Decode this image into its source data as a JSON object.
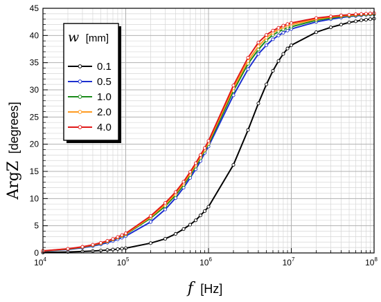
{
  "chart_data": {
    "type": "line",
    "xscale": "log",
    "xlim": [
      10000,
      100000000
    ],
    "ylim": [
      0,
      45
    ],
    "xlabel": {
      "symbol": "f",
      "unit": "[Hz]"
    },
    "ylabel": {
      "symbol": "ArgZ",
      "unit": "[degrees]"
    },
    "x_ticks": [
      {
        "base": "10",
        "exp": "4"
      },
      {
        "base": "10",
        "exp": "5"
      },
      {
        "base": "10",
        "exp": "6"
      },
      {
        "base": "10",
        "exp": "7"
      },
      {
        "base": "10",
        "exp": "8"
      }
    ],
    "y_ticks": [
      "0",
      "5",
      "10",
      "15",
      "20",
      "25",
      "30",
      "35",
      "40",
      "45"
    ],
    "grid": true,
    "legend": {
      "position": "top-left",
      "title_symbol": "w",
      "title_unit": "[mm]",
      "entries": [
        "0.1",
        "0.5",
        "1.0",
        "2.0",
        "4.0"
      ]
    },
    "x": [
      10000,
      20000,
      30000,
      40000,
      50000,
      60000,
      70000,
      80000,
      90000,
      100000,
      200000,
      300000,
      400000,
      500000,
      600000,
      700000,
      800000,
      900000,
      1000000,
      2000000,
      3000000,
      4000000,
      5000000,
      6000000,
      7000000,
      8000000,
      9000000,
      10000000,
      20000000,
      30000000,
      40000000,
      50000000,
      60000000,
      70000000,
      80000000,
      90000000,
      100000000
    ],
    "series": [
      {
        "name": "0.1",
        "color": "#000000",
        "values": [
          0.09,
          0.18,
          0.27,
          0.35,
          0.44,
          0.53,
          0.61,
          0.7,
          0.79,
          0.87,
          1.8,
          2.6,
          3.5,
          4.4,
          5.2,
          6.0,
          6.9,
          7.7,
          8.5,
          16.2,
          22.6,
          27.5,
          31.0,
          33.5,
          35.3,
          36.6,
          37.6,
          38.2,
          40.6,
          41.5,
          42.0,
          42.4,
          42.6,
          42.8,
          42.9,
          43.0,
          43.1
        ]
      },
      {
        "name": "0.5",
        "color": "#1c2fcf",
        "values": [
          0.32,
          0.64,
          0.96,
          1.27,
          1.58,
          1.89,
          2.2,
          2.51,
          2.81,
          3.1,
          5.7,
          8.0,
          10.1,
          12.0,
          13.8,
          15.4,
          16.9,
          18.4,
          19.6,
          29.0,
          33.8,
          36.6,
          38.2,
          39.3,
          40.0,
          40.5,
          40.9,
          41.2,
          42.5,
          43.0,
          43.3,
          43.5,
          43.6,
          43.7,
          43.8,
          43.85,
          43.9
        ]
      },
      {
        "name": "1.0",
        "color": "#1a8a1a",
        "values": [
          0.35,
          0.7,
          1.05,
          1.4,
          1.75,
          2.1,
          2.45,
          2.8,
          3.1,
          3.4,
          6.4,
          8.6,
          10.6,
          12.5,
          14.3,
          15.9,
          17.4,
          18.8,
          20.0,
          29.8,
          34.8,
          37.4,
          39.1,
          40.1,
          40.7,
          41.1,
          41.4,
          41.6,
          42.8,
          43.2,
          43.5,
          43.6,
          43.7,
          43.8,
          43.85,
          43.9,
          43.95
        ]
      },
      {
        "name": "2.0",
        "color": "#ff9a1f",
        "values": [
          0.37,
          0.74,
          1.1,
          1.45,
          1.8,
          2.15,
          2.5,
          2.85,
          3.2,
          3.5,
          6.6,
          8.9,
          10.9,
          12.8,
          14.6,
          16.2,
          17.7,
          19.0,
          20.3,
          30.3,
          35.3,
          38.0,
          39.6,
          40.5,
          41.1,
          41.5,
          41.8,
          42.0,
          43.0,
          43.4,
          43.6,
          43.7,
          43.8,
          43.9,
          43.95,
          44.0,
          44.05
        ]
      },
      {
        "name": "4.0",
        "color": "#e01818",
        "values": [
          0.38,
          0.76,
          1.13,
          1.5,
          1.86,
          2.22,
          2.57,
          2.92,
          3.27,
          3.6,
          6.8,
          9.2,
          11.2,
          13.1,
          14.9,
          16.5,
          18.0,
          19.3,
          20.6,
          30.8,
          35.9,
          38.7,
          40.1,
          40.9,
          41.4,
          41.8,
          42.1,
          42.3,
          43.2,
          43.5,
          43.7,
          43.8,
          43.9,
          43.95,
          44.0,
          44.05,
          44.1
        ]
      }
    ]
  }
}
